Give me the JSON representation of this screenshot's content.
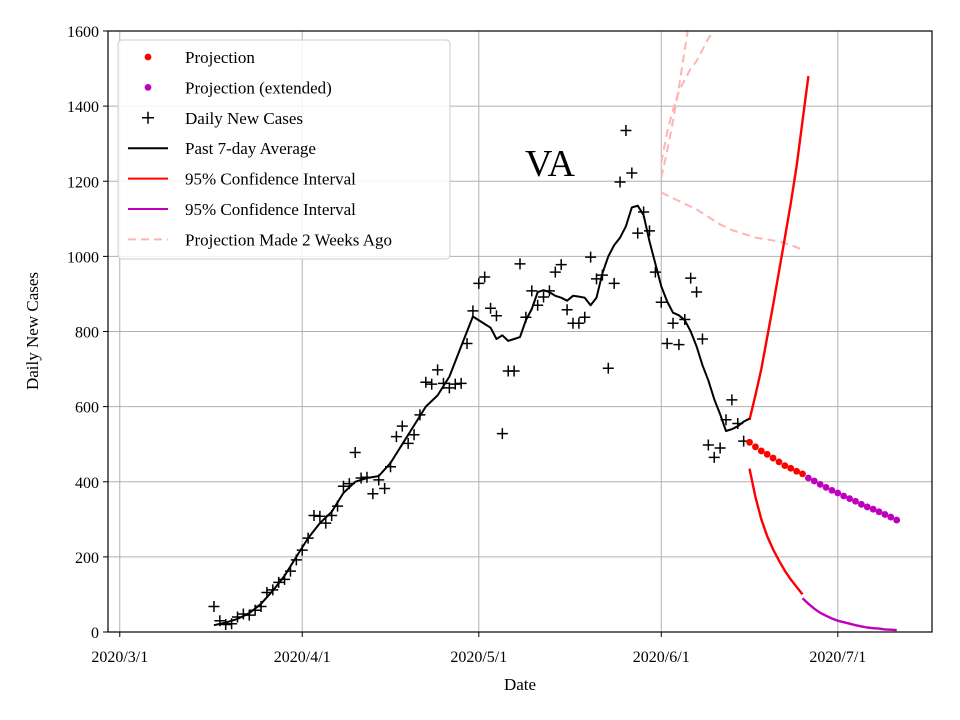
{
  "chart_data": {
    "type": "line",
    "title": "VA",
    "xlabel": "Date",
    "ylabel": "Daily New Cases",
    "ylim": [
      0,
      1600
    ],
    "yticks": [
      0,
      200,
      400,
      600,
      800,
      1000,
      1200,
      1400,
      1600
    ],
    "xlim_day": [
      -2,
      138
    ],
    "xticks": [
      {
        "day": 0,
        "label": "2020/3/1"
      },
      {
        "day": 31,
        "label": "2020/4/1"
      },
      {
        "day": 61,
        "label": "2020/5/1"
      },
      {
        "day": 92,
        "label": "2020/6/1"
      },
      {
        "day": 122,
        "label": "2020/7/1"
      }
    ],
    "grid": true,
    "legend_position": "top-left",
    "colors": {
      "projection": "#ff0000",
      "projection_extended": "#bf00bf",
      "daily": "#000000",
      "average": "#000000",
      "ci": "#ff0000",
      "ci_extended": "#bf00bf",
      "previous": "#ffb3b3"
    },
    "series": [
      {
        "name": "Daily New Cases",
        "kind": "scatter",
        "marker": "plus",
        "points": [
          [
            16,
            68
          ],
          [
            17,
            30
          ],
          [
            18,
            20
          ],
          [
            19,
            22
          ],
          [
            20,
            40
          ],
          [
            21,
            48
          ],
          [
            22,
            45
          ],
          [
            23,
            58
          ],
          [
            24,
            68
          ],
          [
            25,
            105
          ],
          [
            26,
            112
          ],
          [
            27,
            132
          ],
          [
            28,
            140
          ],
          [
            29,
            162
          ],
          [
            30,
            192
          ],
          [
            31,
            218
          ],
          [
            32,
            250
          ],
          [
            33,
            310
          ],
          [
            34,
            308
          ],
          [
            35,
            290
          ],
          [
            36,
            310
          ],
          [
            37,
            335
          ],
          [
            38,
            388
          ],
          [
            39,
            395
          ],
          [
            40,
            478
          ],
          [
            41,
            410
          ],
          [
            42,
            412
          ],
          [
            43,
            368
          ],
          [
            44,
            405
          ],
          [
            45,
            382
          ],
          [
            46,
            440
          ],
          [
            47,
            520
          ],
          [
            48,
            548
          ],
          [
            49,
            502
          ],
          [
            50,
            525
          ],
          [
            51,
            578
          ],
          [
            52,
            665
          ],
          [
            53,
            660
          ],
          [
            54,
            698
          ],
          [
            55,
            662
          ],
          [
            56,
            650
          ],
          [
            57,
            660
          ],
          [
            58,
            662
          ],
          [
            59,
            768
          ],
          [
            60,
            855
          ],
          [
            61,
            928
          ],
          [
            62,
            945
          ],
          [
            63,
            862
          ],
          [
            64,
            842
          ],
          [
            65,
            528
          ],
          [
            66,
            695
          ],
          [
            67,
            695
          ],
          [
            68,
            980
          ],
          [
            69,
            838
          ],
          [
            70,
            908
          ],
          [
            71,
            870
          ],
          [
            72,
            892
          ],
          [
            73,
            908
          ],
          [
            74,
            958
          ],
          [
            75,
            978
          ],
          [
            76,
            858
          ],
          [
            77,
            822
          ],
          [
            78,
            822
          ],
          [
            79,
            838
          ],
          [
            80,
            998
          ],
          [
            81,
            940
          ],
          [
            82,
            950
          ],
          [
            83,
            702
          ],
          [
            84,
            928
          ],
          [
            85,
            1198
          ],
          [
            86,
            1335
          ],
          [
            87,
            1222
          ],
          [
            88,
            1062
          ],
          [
            89,
            1118
          ],
          [
            90,
            1068
          ],
          [
            91,
            958
          ],
          [
            92,
            878
          ],
          [
            93,
            768
          ],
          [
            94,
            822
          ],
          [
            95,
            765
          ],
          [
            96,
            832
          ],
          [
            97,
            942
          ],
          [
            98,
            905
          ],
          [
            99,
            780
          ],
          [
            100,
            498
          ],
          [
            101,
            465
          ],
          [
            102,
            490
          ],
          [
            103,
            565
          ],
          [
            104,
            618
          ],
          [
            105,
            555
          ],
          [
            106,
            508
          ]
        ]
      },
      {
        "name": "Past 7-day Average",
        "kind": "line",
        "points": [
          [
            16,
            18
          ],
          [
            18,
            25
          ],
          [
            20,
            35
          ],
          [
            22,
            50
          ],
          [
            24,
            75
          ],
          [
            26,
            110
          ],
          [
            28,
            150
          ],
          [
            30,
            200
          ],
          [
            32,
            250
          ],
          [
            34,
            290
          ],
          [
            36,
            320
          ],
          [
            38,
            370
          ],
          [
            40,
            400
          ],
          [
            42,
            410
          ],
          [
            44,
            415
          ],
          [
            46,
            450
          ],
          [
            48,
            500
          ],
          [
            50,
            550
          ],
          [
            52,
            600
          ],
          [
            54,
            630
          ],
          [
            56,
            680
          ],
          [
            58,
            760
          ],
          [
            60,
            840
          ],
          [
            62,
            820
          ],
          [
            63,
            810
          ],
          [
            64,
            780
          ],
          [
            65,
            790
          ],
          [
            66,
            775
          ],
          [
            67,
            780
          ],
          [
            68,
            785
          ],
          [
            69,
            830
          ],
          [
            70,
            860
          ],
          [
            71,
            905
          ],
          [
            72,
            910
          ],
          [
            73,
            905
          ],
          [
            74,
            895
          ],
          [
            75,
            890
          ],
          [
            76,
            882
          ],
          [
            77,
            895
          ],
          [
            78,
            893
          ],
          [
            79,
            890
          ],
          [
            80,
            870
          ],
          [
            81,
            890
          ],
          [
            82,
            955
          ],
          [
            83,
            1000
          ],
          [
            84,
            1030
          ],
          [
            85,
            1050
          ],
          [
            86,
            1080
          ],
          [
            87,
            1130
          ],
          [
            88,
            1135
          ],
          [
            89,
            1110
          ],
          [
            90,
            1040
          ],
          [
            91,
            980
          ],
          [
            92,
            920
          ],
          [
            93,
            880
          ],
          [
            94,
            850
          ],
          [
            95,
            843
          ],
          [
            96,
            830
          ],
          [
            97,
            800
          ],
          [
            98,
            760
          ],
          [
            99,
            710
          ],
          [
            100,
            670
          ],
          [
            101,
            620
          ],
          [
            102,
            580
          ],
          [
            103,
            535
          ],
          [
            104,
            540
          ],
          [
            105,
            548
          ],
          [
            106,
            560
          ],
          [
            107,
            568
          ]
        ]
      },
      {
        "name": "Projection",
        "kind": "dots",
        "points": [
          [
            107,
            505
          ],
          [
            108,
            493
          ],
          [
            109,
            482
          ],
          [
            110,
            473
          ],
          [
            111,
            463
          ],
          [
            112,
            453
          ],
          [
            113,
            443
          ],
          [
            114,
            436
          ],
          [
            115,
            428
          ],
          [
            116,
            421
          ]
        ]
      },
      {
        "name": "Projection (extended)",
        "kind": "dots",
        "points": [
          [
            117,
            410
          ],
          [
            118,
            402
          ],
          [
            119,
            393
          ],
          [
            120,
            385
          ],
          [
            121,
            377
          ],
          [
            122,
            370
          ],
          [
            123,
            362
          ],
          [
            124,
            355
          ],
          [
            125,
            348
          ],
          [
            126,
            340
          ],
          [
            127,
            333
          ],
          [
            128,
            327
          ],
          [
            129,
            320
          ],
          [
            130,
            313
          ],
          [
            131,
            306
          ],
          [
            132,
            298
          ]
        ]
      },
      {
        "name": "95% Confidence Interval",
        "kind": "line",
        "segments": [
          [
            [
              107,
              565
            ],
            [
              108,
              630
            ],
            [
              109,
              700
            ],
            [
              110,
              785
            ],
            [
              111,
              870
            ],
            [
              112,
              960
            ],
            [
              113,
              1050
            ],
            [
              114,
              1140
            ],
            [
              115,
              1240
            ],
            [
              116,
              1360
            ],
            [
              117,
              1480
            ]
          ],
          [
            [
              107,
              435
            ],
            [
              108,
              360
            ],
            [
              109,
              300
            ],
            [
              110,
              255
            ],
            [
              111,
              220
            ],
            [
              112,
              190
            ],
            [
              113,
              163
            ],
            [
              114,
              140
            ],
            [
              115,
              120
            ],
            [
              116,
              100
            ]
          ]
        ]
      },
      {
        "name": "95% Confidence Interval",
        "kind": "line",
        "segments": [
          [
            [
              116,
              90
            ],
            [
              117,
              75
            ],
            [
              118,
              62
            ],
            [
              119,
              51
            ],
            [
              120,
              43
            ],
            [
              121,
              36
            ],
            [
              122,
              30
            ],
            [
              123,
              26
            ],
            [
              124,
              22
            ],
            [
              125,
              18
            ],
            [
              126,
              15
            ],
            [
              127,
              12
            ],
            [
              128,
              10
            ],
            [
              129,
              9
            ],
            [
              130,
              7
            ],
            [
              131,
              6
            ],
            [
              132,
              5
            ]
          ]
        ]
      },
      {
        "name": "Projection Made 2 Weeks Ago",
        "kind": "dashed",
        "segments": [
          [
            [
              92,
              1170
            ],
            [
              94,
              1155
            ],
            [
              96,
              1140
            ],
            [
              98,
              1125
            ],
            [
              100,
              1105
            ],
            [
              102,
              1085
            ],
            [
              104,
              1070
            ],
            [
              106,
              1060
            ],
            [
              108,
              1050
            ],
            [
              110,
              1045
            ],
            [
              112,
              1040
            ],
            [
              114,
              1030
            ],
            [
              116,
              1018
            ]
          ],
          [
            [
              92,
              1210
            ],
            [
              93,
              1280
            ],
            [
              94,
              1360
            ],
            [
              95,
              1450
            ],
            [
              96,
              1550
            ],
            [
              96.5,
              1600
            ]
          ],
          [
            [
              92,
              1250
            ],
            [
              93,
              1330
            ],
            [
              94,
              1390
            ],
            [
              95,
              1440
            ],
            [
              96,
              1470
            ],
            [
              97,
              1500
            ],
            [
              98,
              1520
            ],
            [
              99,
              1550
            ],
            [
              100,
              1580
            ],
            [
              101,
              1600
            ]
          ]
        ]
      }
    ]
  },
  "legend": {
    "items": [
      {
        "label": "Projection",
        "style": "dot",
        "color": "#ff0000"
      },
      {
        "label": "Projection (extended)",
        "style": "dot",
        "color": "#bf00bf"
      },
      {
        "label": "Daily New Cases",
        "style": "plus",
        "color": "#000000"
      },
      {
        "label": "Past 7-day Average",
        "style": "line",
        "color": "#000000"
      },
      {
        "label": "95% Confidence Interval",
        "style": "line",
        "color": "#ff0000"
      },
      {
        "label": "95% Confidence Interval",
        "style": "line",
        "color": "#bf00bf"
      },
      {
        "label": "Projection Made 2 Weeks Ago",
        "style": "dashed",
        "color": "#ffb3b3"
      }
    ]
  }
}
